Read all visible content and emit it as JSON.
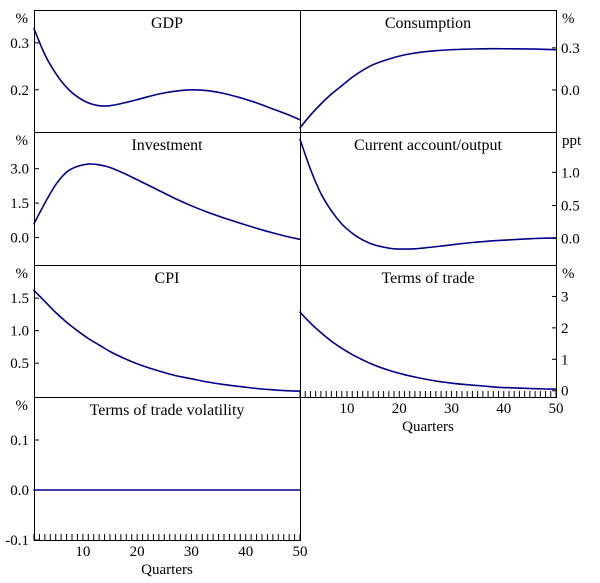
{
  "figure": {
    "background": "#ffffff",
    "line_color": "#00008b",
    "border_color": "#000000"
  },
  "chart_data": {
    "type": "line",
    "x_label": "Quarters",
    "x_range": [
      1,
      50
    ],
    "x_ticks": [
      10,
      20,
      30,
      40,
      50
    ],
    "line_color": "#00008b",
    "panels": [
      {
        "key": "gdp",
        "title": "GDP",
        "unit": "%",
        "column": "left",
        "row": 0,
        "label_side": "left",
        "has_x_axis": false,
        "ylim": [
          0.11,
          0.37
        ],
        "yticks": [
          {
            "value": 0.3,
            "label": "0.3"
          },
          {
            "value": 0.2,
            "label": "0.2"
          }
        ],
        "points": [
          [
            1,
            0.33
          ],
          [
            3,
            0.275
          ],
          [
            5,
            0.235
          ],
          [
            7,
            0.205
          ],
          [
            9,
            0.185
          ],
          [
            11,
            0.172
          ],
          [
            13,
            0.166
          ],
          [
            15,
            0.166
          ],
          [
            18,
            0.173
          ],
          [
            21,
            0.182
          ],
          [
            24,
            0.191
          ],
          [
            27,
            0.197
          ],
          [
            30,
            0.2
          ],
          [
            33,
            0.198
          ],
          [
            36,
            0.192
          ],
          [
            39,
            0.183
          ],
          [
            42,
            0.172
          ],
          [
            45,
            0.159
          ],
          [
            48,
            0.146
          ],
          [
            50,
            0.136
          ]
        ]
      },
      {
        "key": "consumption",
        "title": "Consumption",
        "unit": "%",
        "column": "right",
        "row": 0,
        "label_side": "right",
        "has_x_axis": false,
        "ylim": [
          -0.3,
          0.57
        ],
        "yticks": [
          {
            "value": 0.3,
            "label": "0.3"
          },
          {
            "value": 0.0,
            "label": "0.0"
          }
        ],
        "points": [
          [
            1,
            -0.27
          ],
          [
            3,
            -0.18
          ],
          [
            5,
            -0.1
          ],
          [
            7,
            -0.03
          ],
          [
            9,
            0.03
          ],
          [
            11,
            0.09
          ],
          [
            13,
            0.14
          ],
          [
            15,
            0.18
          ],
          [
            18,
            0.22
          ],
          [
            21,
            0.25
          ],
          [
            24,
            0.268
          ],
          [
            27,
            0.28
          ],
          [
            30,
            0.287
          ],
          [
            34,
            0.292
          ],
          [
            38,
            0.294
          ],
          [
            42,
            0.293
          ],
          [
            46,
            0.291
          ],
          [
            50,
            0.287
          ]
        ]
      },
      {
        "key": "investment",
        "title": "Investment",
        "unit": "%",
        "column": "left",
        "row": 1,
        "label_side": "left",
        "has_x_axis": false,
        "ylim": [
          -1.2,
          4.6
        ],
        "yticks": [
          {
            "value": 3.0,
            "label": "3.0"
          },
          {
            "value": 1.5,
            "label": "1.5"
          },
          {
            "value": 0.0,
            "label": "0.0"
          }
        ],
        "points": [
          [
            1,
            0.6
          ],
          [
            3,
            1.5
          ],
          [
            5,
            2.3
          ],
          [
            7,
            2.85
          ],
          [
            9,
            3.1
          ],
          [
            11,
            3.2
          ],
          [
            13,
            3.17
          ],
          [
            15,
            3.05
          ],
          [
            18,
            2.75
          ],
          [
            21,
            2.4
          ],
          [
            24,
            2.05
          ],
          [
            27,
            1.7
          ],
          [
            30,
            1.38
          ],
          [
            33,
            1.1
          ],
          [
            36,
            0.85
          ],
          [
            39,
            0.62
          ],
          [
            42,
            0.4
          ],
          [
            45,
            0.2
          ],
          [
            48,
            0.02
          ],
          [
            50,
            -0.08
          ]
        ]
      },
      {
        "key": "current_account",
        "title": "Current account/output",
        "unit": "ppt",
        "column": "right",
        "row": 1,
        "label_side": "right",
        "has_x_axis": false,
        "ylim": [
          -0.4,
          1.61
        ],
        "yticks": [
          {
            "value": 1.0,
            "label": "1.0"
          },
          {
            "value": 0.5,
            "label": "0.5"
          },
          {
            "value": 0.0,
            "label": "0.0"
          }
        ],
        "points": [
          [
            1,
            1.5
          ],
          [
            3,
            1.05
          ],
          [
            5,
            0.68
          ],
          [
            7,
            0.42
          ],
          [
            9,
            0.22
          ],
          [
            11,
            0.08
          ],
          [
            13,
            -0.02
          ],
          [
            15,
            -0.09
          ],
          [
            17,
            -0.13
          ],
          [
            19,
            -0.155
          ],
          [
            21,
            -0.16
          ],
          [
            23,
            -0.155
          ],
          [
            25,
            -0.14
          ],
          [
            28,
            -0.115
          ],
          [
            31,
            -0.085
          ],
          [
            34,
            -0.06
          ],
          [
            37,
            -0.04
          ],
          [
            40,
            -0.025
          ],
          [
            43,
            -0.012
          ],
          [
            46,
            0.0
          ],
          [
            50,
            0.01
          ]
        ]
      },
      {
        "key": "cpi",
        "title": "CPI",
        "unit": "%",
        "column": "left",
        "row": 2,
        "label_side": "left",
        "has_x_axis": false,
        "ylim": [
          -0.02,
          2.01
        ],
        "yticks": [
          {
            "value": 1.5,
            "label": "1.5"
          },
          {
            "value": 1.0,
            "label": "1.0"
          },
          {
            "value": 0.5,
            "label": "0.5"
          }
        ],
        "points": [
          [
            1,
            1.62
          ],
          [
            3,
            1.45
          ],
          [
            5,
            1.28
          ],
          [
            7,
            1.13
          ],
          [
            9,
            1.0
          ],
          [
            11,
            0.88
          ],
          [
            13,
            0.78
          ],
          [
            15,
            0.68
          ],
          [
            18,
            0.56
          ],
          [
            21,
            0.46
          ],
          [
            24,
            0.38
          ],
          [
            27,
            0.31
          ],
          [
            30,
            0.26
          ],
          [
            33,
            0.21
          ],
          [
            36,
            0.17
          ],
          [
            39,
            0.14
          ],
          [
            42,
            0.11
          ],
          [
            45,
            0.09
          ],
          [
            48,
            0.075
          ],
          [
            50,
            0.07
          ]
        ]
      },
      {
        "key": "terms_of_trade",
        "title": "Terms of trade",
        "unit": "%",
        "column": "right",
        "row": 2,
        "label_side": "right",
        "has_x_axis": true,
        "ylim": [
          -0.2,
          4.0
        ],
        "yticks": [
          {
            "value": 3,
            "label": "3"
          },
          {
            "value": 2,
            "label": "2"
          },
          {
            "value": 1,
            "label": "1"
          },
          {
            "value": 0,
            "label": "0"
          }
        ],
        "points": [
          [
            1,
            2.5
          ],
          [
            3,
            2.15
          ],
          [
            5,
            1.85
          ],
          [
            7,
            1.58
          ],
          [
            9,
            1.35
          ],
          [
            11,
            1.15
          ],
          [
            13,
            0.98
          ],
          [
            15,
            0.83
          ],
          [
            18,
            0.65
          ],
          [
            21,
            0.51
          ],
          [
            24,
            0.4
          ],
          [
            27,
            0.31
          ],
          [
            30,
            0.24
          ],
          [
            33,
            0.19
          ],
          [
            36,
            0.15
          ],
          [
            39,
            0.11
          ],
          [
            42,
            0.09
          ],
          [
            45,
            0.07
          ],
          [
            48,
            0.055
          ],
          [
            50,
            0.05
          ]
        ]
      },
      {
        "key": "terms_of_trade_volatility",
        "title": "Terms of trade volatility",
        "unit": "%",
        "column": "left",
        "row": 3,
        "label_side": "left",
        "has_x_axis": true,
        "ylim": [
          -0.1,
          0.186
        ],
        "yticks": [
          {
            "value": 0.1,
            "label": "0.1"
          },
          {
            "value": 0.0,
            "label": "0.0"
          },
          {
            "value": -0.1,
            "label": "-0.1"
          }
        ],
        "points": [
          [
            1,
            0.0
          ],
          [
            50,
            0.0
          ]
        ]
      }
    ]
  }
}
